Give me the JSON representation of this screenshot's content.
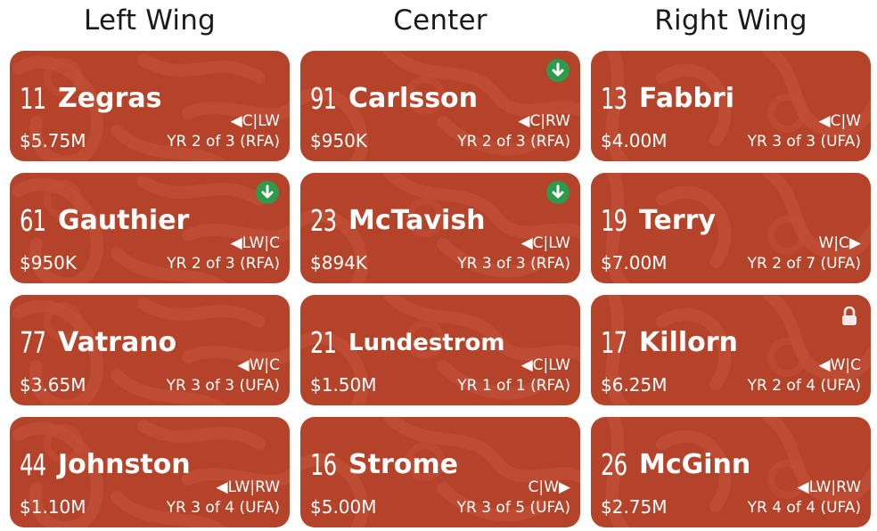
{
  "columns": [
    "Left Wing",
    "Center",
    "Right Wing"
  ],
  "rows": [
    [
      {
        "number": "11",
        "name": "Zegras",
        "positions": "◀C|LW",
        "salary": "$5.75M",
        "contract": "YR 2 of 3 (RFA)",
        "badge": ""
      },
      {
        "number": "91",
        "name": "Carlsson",
        "positions": "◀C|RW",
        "salary": "$950K",
        "contract": "YR 2 of 3 (RFA)",
        "badge": "down-arrow-icon"
      },
      {
        "number": "13",
        "name": "Fabbri",
        "positions": "◀C|W",
        "salary": "$4.00M",
        "contract": "YR 3 of 3 (UFA)",
        "badge": ""
      }
    ],
    [
      {
        "number": "61",
        "name": "Gauthier",
        "positions": "◀LW|C",
        "salary": "$950K",
        "contract": "YR 2 of 3 (RFA)",
        "badge": "down-arrow-icon"
      },
      {
        "number": "23",
        "name": "McTavish",
        "positions": "◀C|LW",
        "salary": "$894K",
        "contract": "YR 3 of 3 (RFA)",
        "badge": "down-arrow-icon"
      },
      {
        "number": "19",
        "name": "Terry",
        "positions": "W|C▶",
        "salary": "$7.00M",
        "contract": "YR 2 of 7 (UFA)",
        "badge": ""
      }
    ],
    [
      {
        "number": "77",
        "name": "Vatrano",
        "positions": "◀W|C",
        "salary": "$3.65M",
        "contract": "YR 3 of 3 (UFA)",
        "badge": ""
      },
      {
        "number": "21",
        "name": "Lundestrom",
        "positions": "◀C|LW",
        "salary": "$1.50M",
        "contract": "YR 1 of 1 (RFA)",
        "badge": ""
      },
      {
        "number": "17",
        "name": "Killorn",
        "positions": "◀W|C",
        "salary": "$6.25M",
        "contract": "YR 2 of 4 (UFA)",
        "badge": "lock-icon"
      }
    ],
    [
      {
        "number": "44",
        "name": "Johnston",
        "positions": "◀LW|RW",
        "salary": "$1.10M",
        "contract": "YR 3 of 4 (UFA)",
        "badge": ""
      },
      {
        "number": "16",
        "name": "Strome",
        "positions": "C|W▶",
        "salary": "$5.00M",
        "contract": "YR 3 of 5 (UFA)",
        "badge": ""
      },
      {
        "number": "26",
        "name": "McGinn",
        "positions": "◀LW|RW",
        "salary": "$2.75M",
        "contract": "YR 4 of 4 (UFA)",
        "badge": ""
      }
    ]
  ],
  "colors": {
    "card_bg": "#b4432a",
    "card_pattern": "#c24f35",
    "badge_green": "#2e9a4b",
    "text": "#ffffff",
    "header_text": "#1a1a1a"
  }
}
